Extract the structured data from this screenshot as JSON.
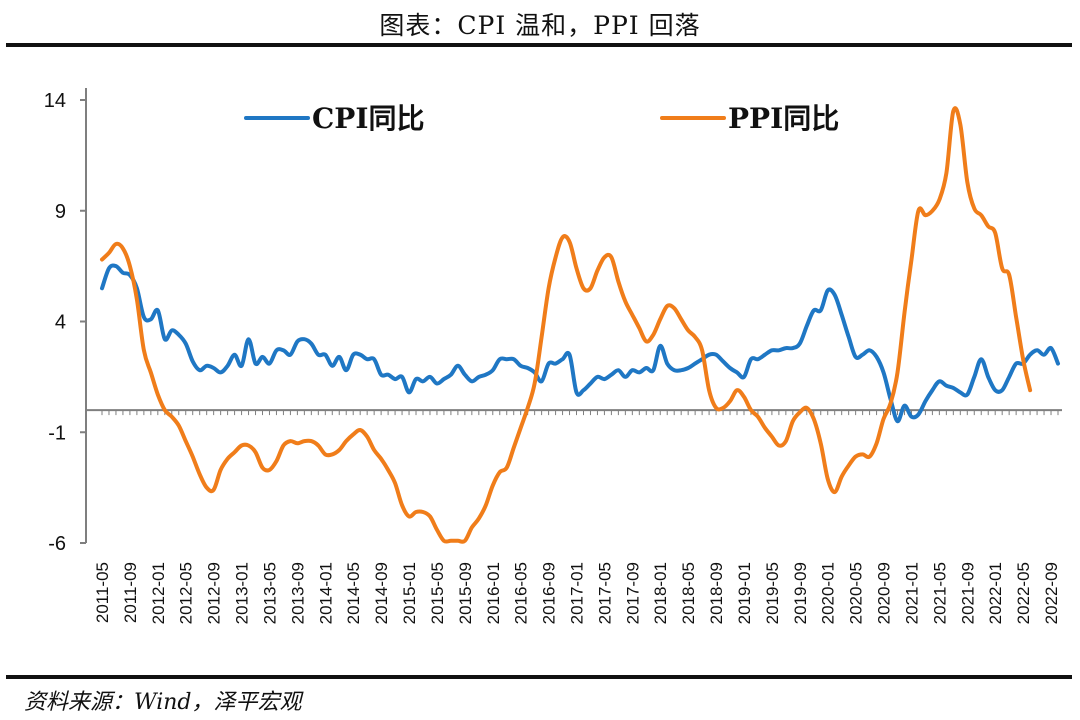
{
  "title": "图表：CPI 温和，PPI 回落",
  "source": "资料来源：Wind，泽平宏观",
  "colors": {
    "cpi": "#1f77c4",
    "ppi": "#f07d1a",
    "axis": "#7f7f7f"
  },
  "chart_data": {
    "type": "line",
    "title": "图表：CPI 温和，PPI 回落",
    "xlabel": "",
    "ylabel": "",
    "ylim": [
      -6,
      14
    ],
    "yticks": [
      14,
      9,
      4,
      -1,
      -6
    ],
    "grid": false,
    "legend_position": "top",
    "x_start": "2011-05",
    "x_end": "2022-10",
    "xtick_labels": [
      "2011-05",
      "2011-09",
      "2012-01",
      "2012-05",
      "2012-09",
      "2013-01",
      "2013-05",
      "2013-09",
      "2014-01",
      "2014-05",
      "2014-09",
      "2015-01",
      "2015-05",
      "2015-09",
      "2016-01",
      "2016-05",
      "2016-09",
      "2017-01",
      "2017-05",
      "2017-09",
      "2018-01",
      "2018-05",
      "2018-09",
      "2019-01",
      "2019-05",
      "2019-09",
      "2020-01",
      "2020-05",
      "2020-09",
      "2021-01",
      "2021-05",
      "2021-09",
      "2022-01",
      "2022-05",
      "2022-09"
    ],
    "series": [
      {
        "name": "CPI同比",
        "color": "#1f77c4",
        "values": [
          5.5,
          6.4,
          6.5,
          6.2,
          6.1,
          5.5,
          4.2,
          4.1,
          4.5,
          3.2,
          3.6,
          3.4,
          3.0,
          2.2,
          1.8,
          2.0,
          1.9,
          1.7,
          2.0,
          2.5,
          2.0,
          3.2,
          2.1,
          2.4,
          2.1,
          2.7,
          2.7,
          2.5,
          3.1,
          3.2,
          3.0,
          2.5,
          2.5,
          2.0,
          2.4,
          1.8,
          2.5,
          2.5,
          2.3,
          2.3,
          1.6,
          1.6,
          1.4,
          1.5,
          0.8,
          1.4,
          1.3,
          1.5,
          1.2,
          1.4,
          1.6,
          2.0,
          1.6,
          1.3,
          1.5,
          1.6,
          1.8,
          2.3,
          2.3,
          2.3,
          2.0,
          1.9,
          1.7,
          1.3,
          2.1,
          2.1,
          2.3,
          2.5,
          0.8,
          0.9,
          1.2,
          1.5,
          1.4,
          1.6,
          1.8,
          1.5,
          1.8,
          1.7,
          1.9,
          1.8,
          2.9,
          2.1,
          1.8,
          1.8,
          1.9,
          2.1,
          2.3,
          2.5,
          2.5,
          2.2,
          1.9,
          1.7,
          1.5,
          2.3,
          2.3,
          2.5,
          2.7,
          2.7,
          2.8,
          2.8,
          3.0,
          3.8,
          4.5,
          4.5,
          5.4,
          5.2,
          4.3,
          3.3,
          2.4,
          2.5,
          2.7,
          2.4,
          1.7,
          0.5,
          -0.5,
          0.2,
          -0.3,
          -0.2,
          0.4,
          0.9,
          1.3,
          1.1,
          1.0,
          0.8,
          0.7,
          1.5,
          2.3,
          1.5,
          0.9,
          0.9,
          1.5,
          2.1,
          2.1,
          2.5,
          2.7,
          2.5,
          2.8,
          2.1
        ]
      },
      {
        "name": "PPI同比",
        "color": "#f07d1a",
        "values": [
          6.8,
          7.1,
          7.5,
          7.3,
          6.5,
          5.0,
          2.7,
          1.7,
          0.7,
          0.0,
          -0.3,
          -0.7,
          -1.4,
          -2.1,
          -2.9,
          -3.5,
          -3.6,
          -2.7,
          -2.2,
          -1.9,
          -1.6,
          -1.6,
          -1.9,
          -2.6,
          -2.7,
          -2.3,
          -1.6,
          -1.4,
          -1.5,
          -1.4,
          -1.4,
          -1.6,
          -2.0,
          -2.0,
          -1.8,
          -1.4,
          -1.1,
          -0.9,
          -1.2,
          -1.8,
          -2.2,
          -2.7,
          -3.3,
          -4.3,
          -4.8,
          -4.6,
          -4.6,
          -4.8,
          -5.4,
          -5.9,
          -5.9,
          -5.9,
          -5.9,
          -5.3,
          -4.9,
          -4.3,
          -3.4,
          -2.8,
          -2.6,
          -1.7,
          -0.8,
          0.1,
          1.2,
          3.3,
          5.5,
          6.9,
          7.8,
          7.6,
          6.4,
          5.5,
          5.5,
          6.3,
          6.9,
          6.9,
          5.8,
          4.9,
          4.3,
          3.7,
          3.1,
          3.4,
          4.1,
          4.7,
          4.6,
          4.1,
          3.6,
          3.3,
          2.7,
          0.9,
          0.1,
          0.1,
          0.4,
          0.9,
          0.6,
          0.0,
          -0.3,
          -0.8,
          -1.2,
          -1.6,
          -1.4,
          -0.5,
          -0.1,
          0.1,
          -0.4,
          -1.5,
          -3.1,
          -3.7,
          -3.0,
          -2.5,
          -2.1,
          -2.0,
          -2.1,
          -1.5,
          -0.4,
          0.3,
          1.7,
          4.4,
          6.8,
          9.0,
          8.8,
          9.0,
          9.5,
          10.7,
          13.5,
          12.9,
          10.3,
          9.1,
          8.8,
          8.3,
          8.0,
          6.4,
          6.1,
          4.2,
          2.3,
          0.9
        ]
      }
    ]
  }
}
